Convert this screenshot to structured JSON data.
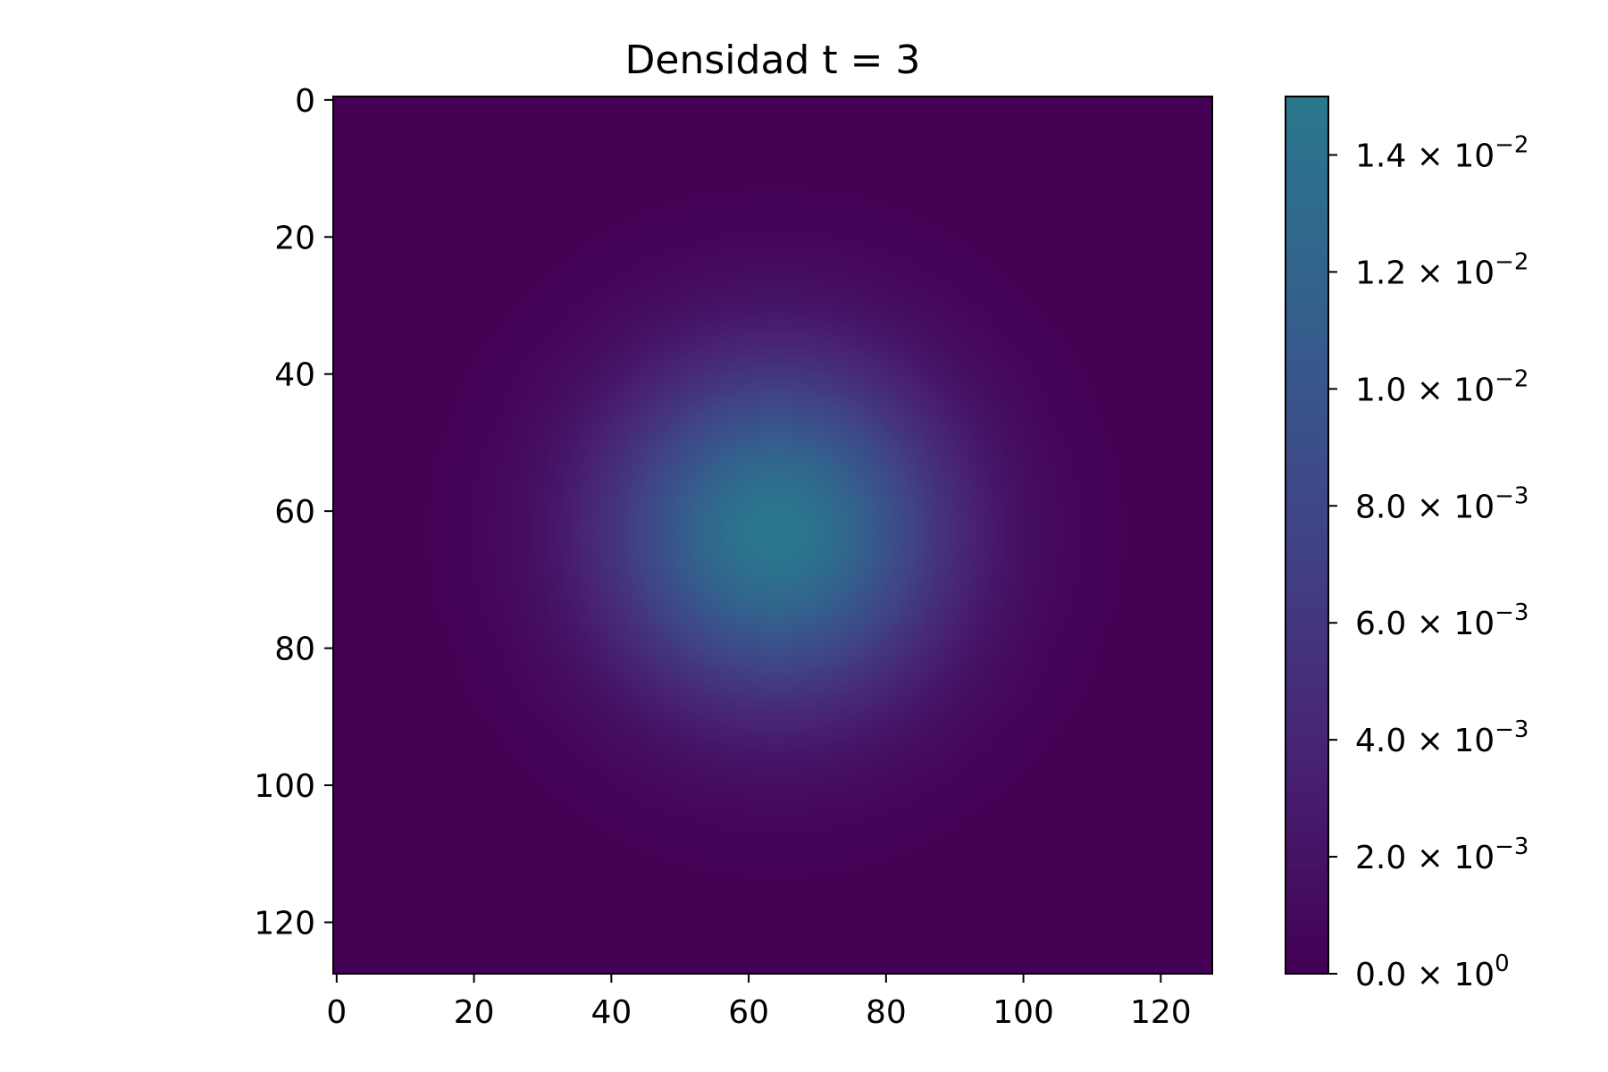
{
  "chart_data": {
    "type": "heatmap",
    "title": "Densidad t = 3",
    "xlabel": "",
    "ylabel": "",
    "grid": false,
    "xlim": [
      -0.5,
      127.5
    ],
    "ylim": [
      127.5,
      -0.5
    ],
    "y_axis_inverted": true,
    "x_ticks": [
      "0",
      "20",
      "40",
      "60",
      "80",
      "100",
      "120"
    ],
    "y_ticks": [
      "0",
      "20",
      "40",
      "60",
      "80",
      "100",
      "120"
    ],
    "grid_size": [
      128,
      128
    ],
    "field": {
      "shape": "gaussian",
      "center_x": 64,
      "center_y": 63,
      "peak_value": 0.015,
      "sigma": 17
    },
    "colormap": "viridis",
    "colorbar": {
      "vmin": 0.0,
      "vmax": 0.015,
      "ticks": [
        {
          "value": 0.0,
          "mantissa": "0.0",
          "exponent": "0"
        },
        {
          "value": 0.002,
          "mantissa": "2.0",
          "exponent": "−3"
        },
        {
          "value": 0.004,
          "mantissa": "4.0",
          "exponent": "−3"
        },
        {
          "value": 0.006,
          "mantissa": "6.0",
          "exponent": "−3"
        },
        {
          "value": 0.008,
          "mantissa": "8.0",
          "exponent": "−3"
        },
        {
          "value": 0.01,
          "mantissa": "1.0",
          "exponent": "−2"
        },
        {
          "value": 0.012,
          "mantissa": "1.2",
          "exponent": "−2"
        },
        {
          "value": 0.014,
          "mantissa": "1.4",
          "exponent": "−2"
        }
      ],
      "times_symbol": "×",
      "base": "10"
    }
  }
}
